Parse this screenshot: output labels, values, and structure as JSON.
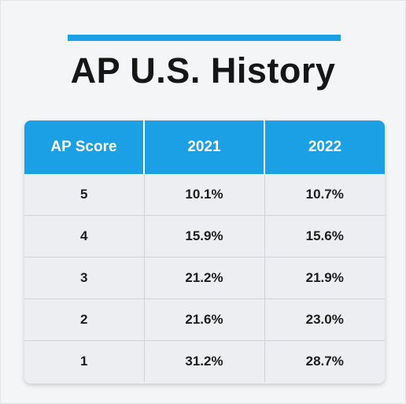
{
  "title": "AP U.S. History",
  "colors": {
    "accent": "#1ba0e6",
    "header_text": "#ffffff",
    "body_text": "#1c1c1c"
  },
  "chart_data": {
    "type": "table",
    "title": "AP U.S. History",
    "columns": [
      "AP Score",
      "2021",
      "2022"
    ],
    "rows": [
      [
        "5",
        "10.1%",
        "10.7%"
      ],
      [
        "4",
        "15.9%",
        "15.6%"
      ],
      [
        "3",
        "21.2%",
        "21.9%"
      ],
      [
        "2",
        "21.6%",
        "23.0%"
      ],
      [
        "1",
        "31.2%",
        "28.7%"
      ]
    ]
  }
}
